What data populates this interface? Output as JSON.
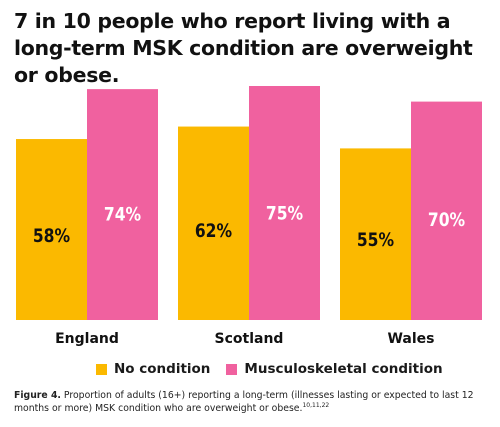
{
  "title": "7 in 10 people who report living with a long-term MSK condition are overweight or obese.",
  "colors": {
    "no_condition": "#FBB900",
    "msk_condition": "#F0619F"
  },
  "legend": {
    "no_condition": "No condition",
    "msk_condition": "Musculoskeletal condition"
  },
  "caption": {
    "label": "Figure 4.",
    "text": "Proportion of adults (16+) reporting a long-term (illnesses lasting or expected to last 12 months or more) MSK condition who are overweight or obese.",
    "refs": "10,11,22"
  },
  "chart_data": {
    "type": "bar",
    "categories": [
      "England",
      "Scotland",
      "Wales"
    ],
    "series": [
      {
        "name": "No condition",
        "values": [
          58,
          62,
          55
        ],
        "labels": [
          "58%",
          "62%",
          "55%"
        ]
      },
      {
        "name": "Musculoskeletal condition",
        "values": [
          74,
          75,
          70
        ],
        "labels": [
          "74%",
          "75%",
          "70%"
        ]
      }
    ],
    "ylim": [
      0,
      100
    ],
    "grid": false,
    "legend_position": "bottom"
  }
}
